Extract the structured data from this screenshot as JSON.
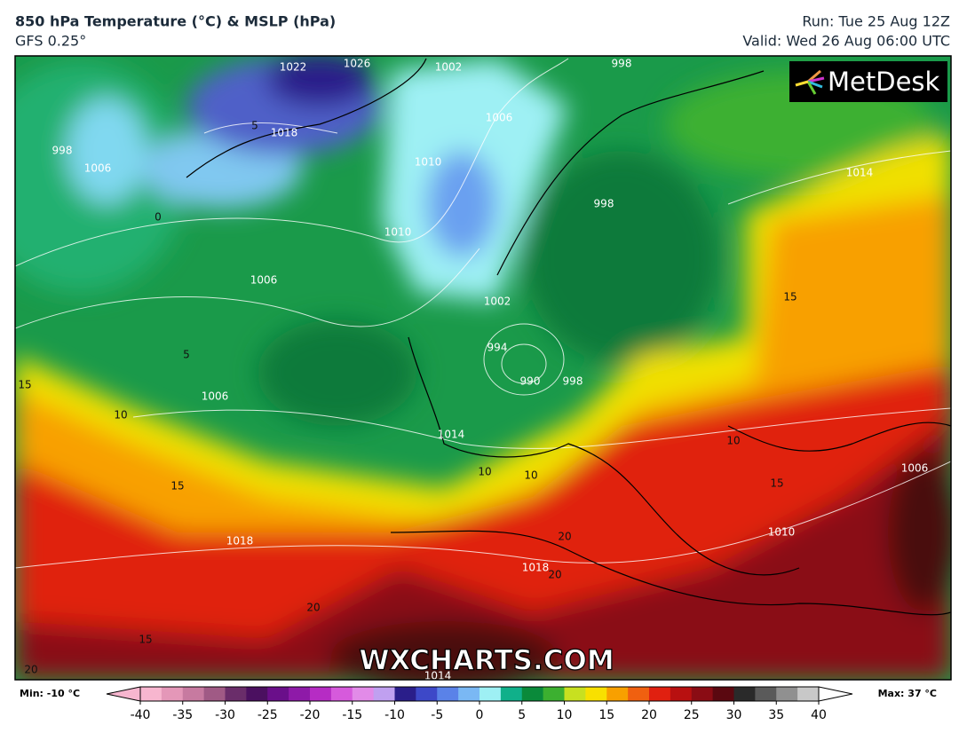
{
  "header": {
    "title": "850 hPa Temperature (°C) & MSLP (hPa)",
    "subtitle": "GFS 0.25°",
    "run": "Run: Tue 25 Aug 12Z",
    "valid": "Valid: Wed 26 Aug 06:00 UTC"
  },
  "logo": "MetDesk",
  "watermark": "WXCHARTS.COM",
  "colorbar": {
    "min_label": "Min: -10 °C",
    "max_label": "Max: 37 °C",
    "lim": [
      -40,
      40
    ],
    "ticks": [
      -40,
      -35,
      -30,
      -25,
      -20,
      -15,
      -10,
      -5,
      0,
      5,
      10,
      15,
      20,
      25,
      30,
      35,
      40
    ],
    "colors": [
      "#f7b6cf",
      "#e497b8",
      "#c77aa0",
      "#a05a85",
      "#6a2d6a",
      "#4b1060",
      "#6a0f8a",
      "#8e1aa8",
      "#b62cc4",
      "#d65adc",
      "#e28be8",
      "#c0a0f0",
      "#2a1e8a",
      "#3d48c8",
      "#5a82e8",
      "#7ab8f4",
      "#9ef0f4",
      "#10b08a",
      "#0a8a3a",
      "#3cb030",
      "#c8e020",
      "#f8e000",
      "#f8a000",
      "#f06010",
      "#e02010",
      "#b81010",
      "#8a0c14",
      "#5a0810",
      "#2a2a2a",
      "#5a5a5a",
      "#909090",
      "#c8c8c8"
    ]
  },
  "map_labels": [
    "1022",
    "1026",
    "1002",
    "998",
    "1018",
    "5",
    "1010",
    "1006",
    "1006",
    "998",
    "1014",
    "1010",
    "998",
    "1006",
    "1002",
    "15",
    "994",
    "990",
    "998",
    "5",
    "1006",
    "15",
    "10",
    "1014",
    "10",
    "1006",
    "10",
    "10",
    "15",
    "15",
    "1018",
    "1010",
    "20",
    "1018",
    "20",
    "20",
    "15",
    "20",
    "1014",
    "0"
  ]
}
